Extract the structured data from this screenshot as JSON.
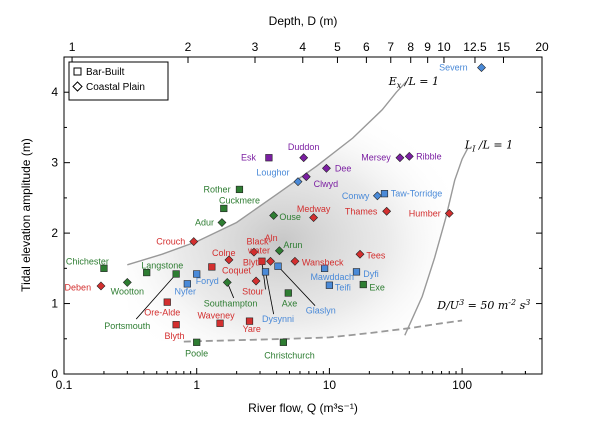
{
  "chart_data": {
    "type": "scatter",
    "xscale": "log",
    "xlim": [
      0.1,
      400
    ],
    "ylim": [
      0,
      4.5
    ],
    "xlabel": "River flow, Q (m³s⁻¹)",
    "ylabel": "Tidal elevation amplitude     (m)",
    "top_label": "Depth, D (m)",
    "xticks": [
      {
        "v": 0.1,
        "label": "0.1"
      },
      {
        "v": 1,
        "label": "1"
      },
      {
        "v": 10,
        "label": "10"
      },
      {
        "v": 100,
        "label": "100"
      }
    ],
    "yticks": [
      {
        "v": 0,
        "label": "0"
      },
      {
        "v": 1,
        "label": "1"
      },
      {
        "v": 2,
        "label": "2"
      },
      {
        "v": 3,
        "label": "3"
      },
      {
        "v": 4,
        "label": "4"
      }
    ],
    "top_ticks": [
      {
        "label": "1",
        "q": 0.115
      },
      {
        "label": "2",
        "q": 0.86
      },
      {
        "label": "3",
        "q": 2.75
      },
      {
        "label": "4",
        "q": 6.3
      },
      {
        "label": "5",
        "q": 11.5
      },
      {
        "label": "6",
        "q": 19
      },
      {
        "label": "7",
        "q": 29
      },
      {
        "label": "8",
        "q": 41
      },
      {
        "label": "9",
        "q": 55
      },
      {
        "label": "10",
        "q": 73
      },
      {
        "label": "12.5",
        "q": 125
      },
      {
        "label": "15",
        "q": 205
      },
      {
        "label": "20",
        "q": 470
      }
    ],
    "legend": {
      "position": "top-left",
      "items": [
        {
          "marker": "square",
          "label": "Bar-Built"
        },
        {
          "marker": "diamond",
          "label": "Coastal Plain"
        }
      ]
    },
    "curves": [
      {
        "name": "E_x/L = 1",
        "label_main": "E",
        "label_sub": "x",
        "label_rest": " /L = 1",
        "label_at": [
          28,
          4.1
        ],
        "style": "solid",
        "color": "#999999",
        "points": [
          [
            0.3,
            1.55
          ],
          [
            0.55,
            1.7
          ],
          [
            1,
            1.88
          ],
          [
            2,
            2.15
          ],
          [
            4,
            2.55
          ],
          [
            8,
            2.95
          ],
          [
            15,
            3.35
          ],
          [
            25,
            3.75
          ],
          [
            32,
            4.0
          ],
          [
            38,
            4.15
          ]
        ]
      },
      {
        "name": "L_I/L = 1",
        "label_main": "L",
        "label_sub": "I",
        "label_rest": " /L = 1",
        "label_at": [
          105,
          3.2
        ],
        "style": "solid",
        "color": "#999999",
        "points": [
          [
            37,
            0.55
          ],
          [
            50,
            1.1
          ],
          [
            62,
            1.65
          ],
          [
            75,
            2.2
          ],
          [
            88,
            2.75
          ],
          [
            100,
            3.05
          ],
          [
            110,
            3.2
          ]
        ]
      },
      {
        "name": "D/U³ = 50 m⁻² s³",
        "label_text": "D/U",
        "label_sup1": "3",
        "label_mid": " = 50 m",
        "label_sup2": "-2",
        "label_mid2": " s",
        "label_sup3": "3",
        "label_at": [
          65,
          0.92
        ],
        "style": "dashed",
        "color": "#999999",
        "points": [
          [
            0.8,
            0.46
          ],
          [
            2,
            0.48
          ],
          [
            5,
            0.5
          ],
          [
            10,
            0.52
          ],
          [
            20,
            0.58
          ],
          [
            40,
            0.65
          ],
          [
            70,
            0.72
          ],
          [
            100,
            0.76
          ]
        ]
      }
    ],
    "colors": {
      "green": "#2e7d32",
      "red": "#d32f2f",
      "blue": "#4a8ad8",
      "purple": "#7b1fa2"
    },
    "points": [
      {
        "name": "Severn",
        "q": 140,
        "a": 4.35,
        "marker": "diamond",
        "color": "blue",
        "lx": 110,
        "ly": 4.35,
        "anchor": "end"
      },
      {
        "name": "Duddon",
        "q": 6.4,
        "a": 3.07,
        "marker": "diamond",
        "color": "purple",
        "lx": 6.4,
        "ly": 3.22,
        "anchor": "middle"
      },
      {
        "name": "Esk",
        "q": 3.5,
        "a": 3.07,
        "marker": "square",
        "color": "purple",
        "lx": 2.8,
        "ly": 3.07,
        "anchor": "end"
      },
      {
        "name": "Dee",
        "q": 9.5,
        "a": 2.92,
        "marker": "diamond",
        "color": "purple",
        "lx": 11,
        "ly": 2.92,
        "anchor": "start"
      },
      {
        "name": "Mersey",
        "q": 34,
        "a": 3.07,
        "marker": "diamond",
        "color": "purple",
        "lx": 29,
        "ly": 3.07,
        "anchor": "end"
      },
      {
        "name": "Ribble",
        "q": 40,
        "a": 3.09,
        "marker": "diamond",
        "color": "purple",
        "lx": 45,
        "ly": 3.09,
        "anchor": "start"
      },
      {
        "name": "Loughor",
        "q": 5.8,
        "a": 2.73,
        "marker": "diamond",
        "color": "blue",
        "lx": 5,
        "ly": 2.86,
        "anchor": "end"
      },
      {
        "name": "Clwyd",
        "q": 6.7,
        "a": 2.8,
        "marker": "diamond",
        "color": "purple",
        "lx": 7.6,
        "ly": 2.7,
        "anchor": "start"
      },
      {
        "name": "Conwy",
        "q": 23,
        "a": 2.53,
        "marker": "diamond",
        "color": "blue",
        "lx": 20,
        "ly": 2.53,
        "anchor": "end"
      },
      {
        "name": "Taw-Torridge",
        "q": 26,
        "a": 2.56,
        "marker": "square",
        "color": "blue",
        "lx": 29,
        "ly": 2.56,
        "anchor": "start"
      },
      {
        "name": "Rother",
        "q": 2.1,
        "a": 2.62,
        "marker": "square",
        "color": "green",
        "lx": 1.8,
        "ly": 2.62,
        "anchor": "end"
      },
      {
        "name": "Cuckmere",
        "q": 1.6,
        "a": 2.35,
        "marker": "square",
        "color": "green",
        "lx": 2.1,
        "ly": 2.46,
        "anchor": "middle"
      },
      {
        "name": "Ouse",
        "q": 3.8,
        "a": 2.25,
        "marker": "diamond",
        "color": "green",
        "lx": 4.2,
        "ly": 2.23,
        "anchor": "start"
      },
      {
        "name": "Adur",
        "q": 1.55,
        "a": 2.15,
        "marker": "diamond",
        "color": "green",
        "lx": 1.35,
        "ly": 2.15,
        "anchor": "end"
      },
      {
        "name": "Medway",
        "q": 7.6,
        "a": 2.22,
        "marker": "diamond",
        "color": "red",
        "lx": 7.6,
        "ly": 2.34,
        "anchor": "middle"
      },
      {
        "name": "Thames",
        "q": 27,
        "a": 2.31,
        "marker": "diamond",
        "color": "red",
        "lx": 23,
        "ly": 2.31,
        "anchor": "end"
      },
      {
        "name": "Humber",
        "q": 80,
        "a": 2.28,
        "marker": "diamond",
        "color": "red",
        "lx": 69,
        "ly": 2.28,
        "anchor": "end"
      },
      {
        "name": "Crouch",
        "q": 0.95,
        "a": 1.88,
        "marker": "diamond",
        "color": "red",
        "lx": 0.82,
        "ly": 1.88,
        "anchor": "end"
      },
      {
        "name": "Black-",
        "q": null,
        "a": null,
        "marker": "none",
        "color": "red",
        "lx": 2.95,
        "ly": 1.88,
        "anchor": "middle"
      },
      {
        "name": "water",
        "q": 2.7,
        "a": 1.73,
        "marker": "diamond",
        "color": "red",
        "lx": 2.95,
        "ly": 1.75,
        "anchor": "middle"
      },
      {
        "name": "Aln",
        "q": 3.6,
        "a": 1.6,
        "marker": "diamond",
        "color": "red",
        "lx": 3.25,
        "ly": 1.93,
        "anchor": "start"
      },
      {
        "name": "Arun",
        "q": 4.2,
        "a": 1.75,
        "marker": "diamond",
        "color": "green",
        "lx": 4.5,
        "ly": 1.83,
        "anchor": "start"
      },
      {
        "name": "Colne",
        "q": 1.75,
        "a": 1.62,
        "marker": "diamond",
        "color": "red",
        "lx": 1.6,
        "ly": 1.72,
        "anchor": "middle"
      },
      {
        "name": "Blyth",
        "q": 3.1,
        "a": 1.6,
        "marker": "square",
        "color": "red",
        "lx": 2.65,
        "ly": 1.58,
        "anchor": "middle"
      },
      {
        "name": "Coquet",
        "q": 1.3,
        "a": 1.52,
        "marker": "square",
        "color": "red",
        "lx": 1.55,
        "ly": 1.47,
        "anchor": "start"
      },
      {
        "name": "Wansbeck",
        "q": 5.5,
        "a": 1.6,
        "marker": "diamond",
        "color": "red",
        "lx": 6.2,
        "ly": 1.58,
        "anchor": "start"
      },
      {
        "name": "Tees",
        "q": 17,
        "a": 1.7,
        "marker": "diamond",
        "color": "red",
        "lx": 19,
        "ly": 1.68,
        "anchor": "start"
      },
      {
        "name": "Chichester",
        "q": 0.2,
        "a": 1.5,
        "marker": "square",
        "color": "green",
        "lx": 0.15,
        "ly": 1.6,
        "anchor": "middle"
      },
      {
        "name": "Langstone",
        "q": 0.42,
        "a": 1.44,
        "marker": "square",
        "color": "green",
        "lx": 0.55,
        "ly": 1.54,
        "anchor": "middle"
      },
      {
        "name": "Foryd",
        "q": 1.0,
        "a": 1.42,
        "marker": "square",
        "color": "blue",
        "lx": 1.2,
        "ly": 1.32,
        "anchor": "middle"
      },
      {
        "name": "Mawddach",
        "q": 9.2,
        "a": 1.5,
        "marker": "square",
        "color": "blue",
        "lx": 10.5,
        "ly": 1.38,
        "anchor": "middle"
      },
      {
        "name": "Dyfi",
        "q": 16,
        "a": 1.45,
        "marker": "square",
        "color": "blue",
        "lx": 18,
        "ly": 1.42,
        "anchor": "start"
      },
      {
        "name": "Wootton",
        "q": 0.3,
        "a": 1.3,
        "marker": "diamond",
        "color": "green",
        "lx": 0.3,
        "ly": 1.17,
        "anchor": "middle"
      },
      {
        "name": "Deben",
        "q": 0.19,
        "a": 1.25,
        "marker": "diamond",
        "color": "red",
        "lx": 0.16,
        "ly": 1.23,
        "anchor": "end"
      },
      {
        "name": "Nyfer",
        "q": 0.85,
        "a": 1.28,
        "marker": "square",
        "color": "blue",
        "lx": 0.82,
        "ly": 1.17,
        "anchor": "middle"
      },
      {
        "name": "Stour",
        "q": 2.8,
        "a": 1.32,
        "marker": "diamond",
        "color": "red",
        "lx": 2.65,
        "ly": 1.17,
        "anchor": "middle"
      },
      {
        "name": "Teifi",
        "q": 10,
        "a": 1.26,
        "marker": "square",
        "color": "blue",
        "lx": 11,
        "ly": 1.23,
        "anchor": "start"
      },
      {
        "name": "Exe",
        "q": 18,
        "a": 1.27,
        "marker": "square",
        "color": "green",
        "lx": 20,
        "ly": 1.23,
        "anchor": "start"
      },
      {
        "name": "Axe",
        "q": 4.9,
        "a": 1.15,
        "marker": "square",
        "color": "green",
        "lx": 5.0,
        "ly": 1.0,
        "anchor": "middle"
      },
      {
        "name": "Glaslyn",
        "q": 4.1,
        "a": 1.53,
        "marker": "square",
        "color": "blue",
        "lx": 8.6,
        "ly": 0.9,
        "anchor": "middle"
      },
      {
        "name": "Dysynni",
        "q": 3.3,
        "a": 1.45,
        "marker": "square",
        "color": "blue",
        "lx": 4.1,
        "ly": 0.78,
        "anchor": "middle"
      },
      {
        "name": "Southampton",
        "q": 1.7,
        "a": 1.3,
        "marker": "diamond",
        "color": "green",
        "lx": 1.8,
        "ly": 1.0,
        "anchor": "middle"
      },
      {
        "name": "Ore-Alde",
        "q": 0.6,
        "a": 1.02,
        "marker": "square",
        "color": "red",
        "lx": 0.55,
        "ly": 0.87,
        "anchor": "middle"
      },
      {
        "name": "Portsmouth",
        "q": 0.7,
        "a": 1.42,
        "marker": "square",
        "color": "green",
        "lx": 0.3,
        "ly": 0.68,
        "anchor": "middle"
      },
      {
        "name": "Blyth",
        "q": 0.7,
        "a": 0.7,
        "marker": "square",
        "color": "red",
        "lx": 0.68,
        "ly": 0.54,
        "anchor": "middle"
      },
      {
        "name": "Waveney",
        "q": 1.5,
        "a": 0.72,
        "marker": "square",
        "color": "red",
        "lx": 1.4,
        "ly": 0.83,
        "anchor": "middle"
      },
      {
        "name": "Yare",
        "q": 2.5,
        "a": 0.75,
        "marker": "square",
        "color": "red",
        "lx": 2.6,
        "ly": 0.64,
        "anchor": "middle"
      },
      {
        "name": "Poole",
        "q": 1.0,
        "a": 0.45,
        "marker": "square",
        "color": "green",
        "lx": 1.0,
        "ly": 0.29,
        "anchor": "middle"
      },
      {
        "name": "Christchurch",
        "q": 4.5,
        "a": 0.45,
        "marker": "square",
        "color": "green",
        "lx": 5.0,
        "ly": 0.26,
        "anchor": "middle"
      }
    ],
    "leaders": [
      {
        "from": [
          0.7,
          1.42
        ],
        "to": [
          0.35,
          0.78
        ]
      },
      {
        "from": [
          1.7,
          1.3
        ],
        "to": [
          1.9,
          1.08
        ]
      },
      {
        "from": [
          3.3,
          1.45
        ],
        "to": [
          3.8,
          0.85
        ]
      },
      {
        "from": [
          4.1,
          1.53
        ],
        "to": [
          7.8,
          0.97
        ]
      },
      {
        "from": [
          3.1,
          1.6
        ],
        "to": [
          3.3,
          1.2
        ]
      }
    ]
  }
}
